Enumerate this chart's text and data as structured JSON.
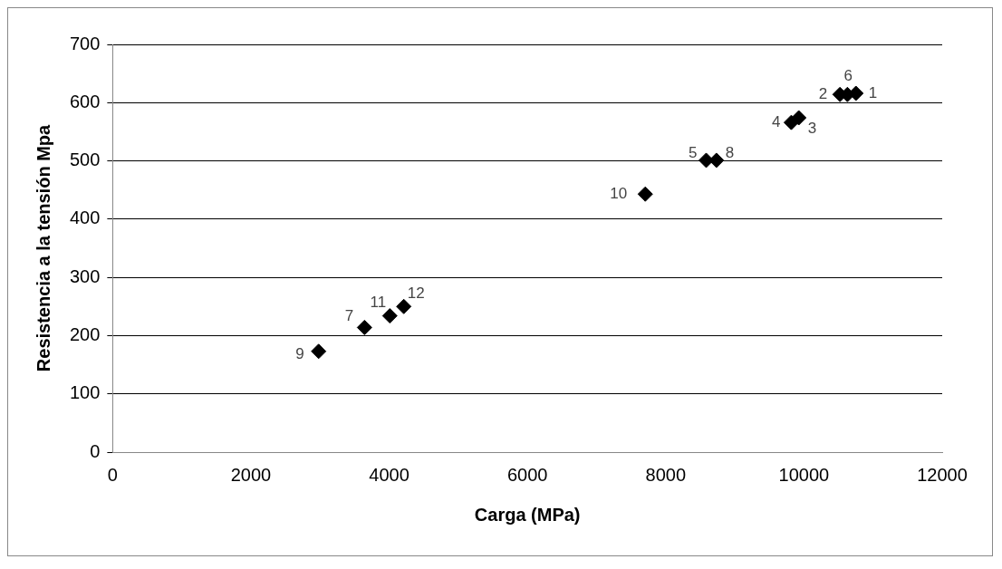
{
  "chart_data": {
    "type": "scatter",
    "xlabel": "Carga (MPa)",
    "ylabel": "Resistencia a la tensión Mpa",
    "x": [
      2979,
      3643,
      4009,
      4211,
      7705,
      8586,
      8734,
      9817,
      9925,
      10521,
      10629,
      10752
    ],
    "series": [
      {
        "color": "#000000",
        "values": [
          173,
          214,
          234,
          250,
          443,
          501,
          501,
          566,
          574,
          614,
          614,
          616
        ]
      }
    ],
    "xlim": [
      0,
      12000
    ],
    "xticks": [
      0,
      2000,
      4000,
      6000,
      8000,
      10000,
      12000
    ],
    "ylim": [
      0,
      700
    ],
    "yticks": [
      0,
      100,
      200,
      300,
      400,
      500,
      600,
      700
    ],
    "grid": "y",
    "marker": "diamond",
    "legend": false,
    "annotations": [
      {
        "text": "9",
        "x": 2979,
        "y": 173
      },
      {
        "text": "7",
        "x": 3643,
        "y": 214
      },
      {
        "text": "11",
        "x": 4009,
        "y": 234
      },
      {
        "text": "12",
        "x": 4211,
        "y": 250
      },
      {
        "text": "10",
        "x": 7705,
        "y": 443
      },
      {
        "text": "5",
        "x": 8586,
        "y": 501
      },
      {
        "text": "8",
        "x": 8734,
        "y": 501
      },
      {
        "text": "4",
        "x": 9817,
        "y": 566
      },
      {
        "text": "3",
        "x": 9925,
        "y": 574
      },
      {
        "text": "2",
        "x": 10521,
        "y": 614
      },
      {
        "text": "6",
        "x": 10629,
        "y": 614
      },
      {
        "text": "1",
        "x": 10752,
        "y": 616
      }
    ]
  }
}
